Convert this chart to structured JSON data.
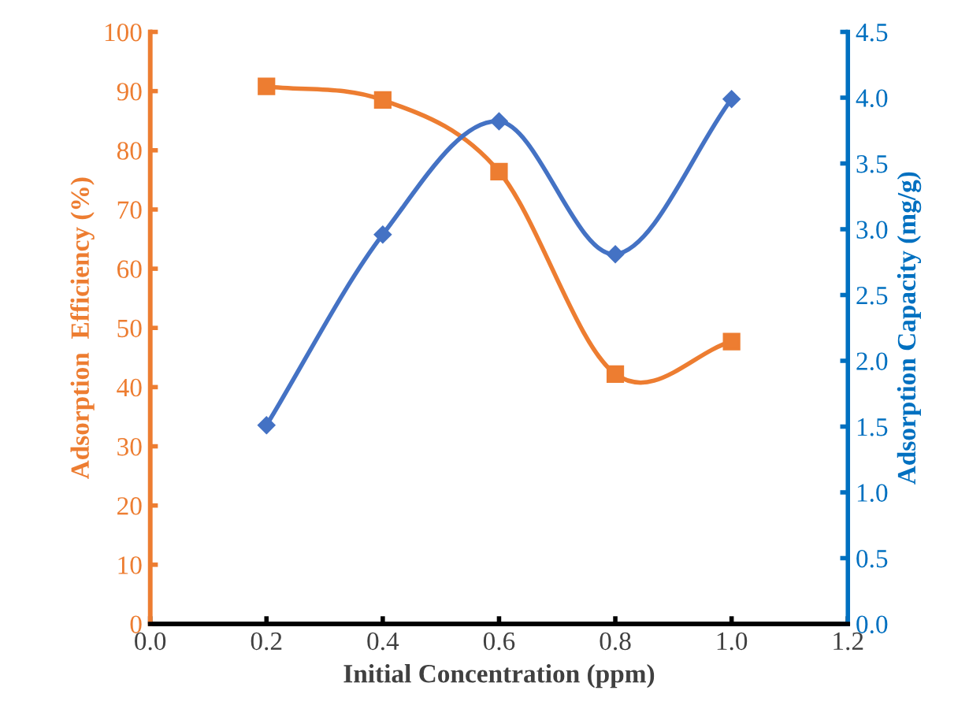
{
  "chart_data": {
    "type": "line",
    "xlabel": "Initial Concentration (ppm)",
    "ylabel": "Adsorption  Efficiency (%)",
    "y2label": "Adsorption Capacity (mg/g)",
    "x": [
      0.2,
      0.4,
      0.6,
      0.8,
      1.0
    ],
    "series": [
      {
        "color": "#ed7d31",
        "marker": "square",
        "values": [
          90.8,
          88.5,
          76.4,
          42.2,
          47.7
        ]
      },
      {
        "color": "#4472c4",
        "marker": "diamond",
        "axis": "y2",
        "values": [
          1.51,
          2.96,
          3.82,
          2.81,
          3.99
        ]
      }
    ],
    "xlim": [
      0,
      1.2
    ],
    "xticks": [
      {
        "value": 0,
        "label": "0.0"
      },
      0.2,
      0.4,
      0.6,
      0.8,
      {
        "value": 1,
        "label": "1.0"
      },
      {
        "value": 1.2,
        "label": "1.2"
      }
    ],
    "ylim": [
      0,
      100
    ],
    "yticks": [
      0,
      10,
      20,
      30,
      40,
      50,
      60,
      70,
      80,
      90,
      100
    ],
    "y2lim": [
      0,
      4.5
    ],
    "y2ticks": [
      {
        "value": 0,
        "label": "0.0"
      },
      0.5,
      {
        "value": 1,
        "label": "1.0"
      },
      1.5,
      {
        "value": 2,
        "label": "2.0"
      },
      2.5,
      {
        "value": 3,
        "label": "3.0"
      },
      3.5,
      {
        "value": 4,
        "label": "4.0"
      },
      4.5
    ],
    "grid": false,
    "line_style": "solid"
  }
}
